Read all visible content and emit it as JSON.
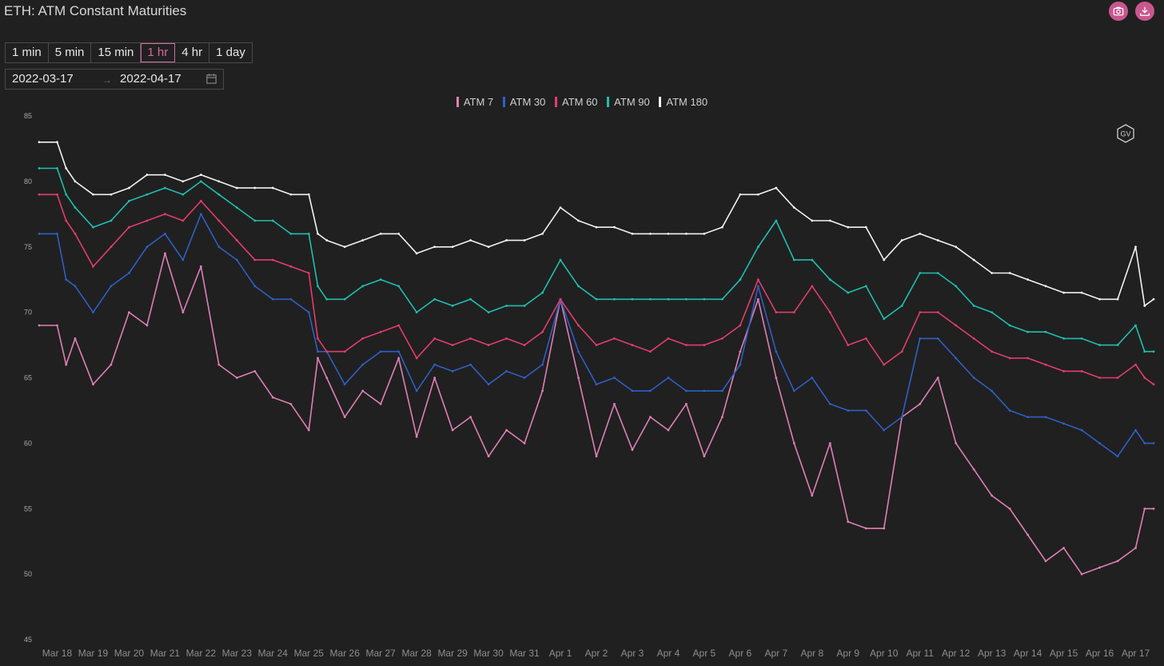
{
  "header": {
    "title": "ETH: ATM Constant Maturities",
    "camera_icon": "camera-icon",
    "download_icon": "download-icon",
    "accent": "#c9578f"
  },
  "intervals": {
    "items": [
      "1 min",
      "5 min",
      "15 min",
      "1 hr",
      "4 hr",
      "1 day"
    ],
    "active": "1 hr"
  },
  "date_range": {
    "start": "2022-03-17",
    "separator": "→",
    "end": "2022-04-17",
    "icon": "calendar-icon"
  },
  "watermark": {
    "text": "GV"
  },
  "chart_data": {
    "type": "line",
    "title": "ETH: ATM Constant Maturities",
    "ylim": [
      45,
      85
    ],
    "y_ticks": [
      45,
      50,
      55,
      60,
      65,
      70,
      75,
      80,
      85
    ],
    "grid": false,
    "legend_position": "top-center",
    "x_tick_labels": [
      "Mar 18",
      "Mar 19",
      "Mar 20",
      "Mar 21",
      "Mar 22",
      "Mar 23",
      "Mar 24",
      "Mar 25",
      "Mar 26",
      "Mar 27",
      "Mar 28",
      "Mar 29",
      "Mar 30",
      "Mar 31",
      "Apr 1",
      "Apr 2",
      "Apr 3",
      "Apr 4",
      "Apr 5",
      "Apr 6",
      "Apr 7",
      "Apr 8",
      "Apr 9",
      "Apr 10",
      "Apr 11",
      "Apr 12",
      "Apr 13",
      "Apr 14",
      "Apr 15",
      "Apr 16",
      "Apr 17"
    ],
    "x": [
      "Mar 17 12:00",
      "Mar 18 00:00",
      "Mar 18 06:00",
      "Mar 18 12:00",
      "Mar 19 00:00",
      "Mar 19 12:00",
      "Mar 20 00:00",
      "Mar 20 12:00",
      "Mar 21 00:00",
      "Mar 21 12:00",
      "Mar 22 00:00",
      "Mar 22 12:00",
      "Mar 23 00:00",
      "Mar 23 12:00",
      "Mar 24 00:00",
      "Mar 24 12:00",
      "Mar 25 00:00",
      "Mar 25 06:00",
      "Mar 25 12:00",
      "Mar 26 00:00",
      "Mar 26 12:00",
      "Mar 27 00:00",
      "Mar 27 12:00",
      "Mar 28 00:00",
      "Mar 28 12:00",
      "Mar 29 00:00",
      "Mar 29 12:00",
      "Mar 30 00:00",
      "Mar 30 12:00",
      "Mar 31 00:00",
      "Mar 31 12:00",
      "Apr 1 00:00",
      "Apr 1 12:00",
      "Apr 2 00:00",
      "Apr 2 12:00",
      "Apr 3 00:00",
      "Apr 3 12:00",
      "Apr 4 00:00",
      "Apr 4 12:00",
      "Apr 5 00:00",
      "Apr 5 12:00",
      "Apr 6 00:00",
      "Apr 6 12:00",
      "Apr 7 00:00",
      "Apr 7 12:00",
      "Apr 8 00:00",
      "Apr 8 12:00",
      "Apr 9 00:00",
      "Apr 9 12:00",
      "Apr 10 00:00",
      "Apr 10 12:00",
      "Apr 11 00:00",
      "Apr 11 12:00",
      "Apr 12 00:00",
      "Apr 12 12:00",
      "Apr 13 00:00",
      "Apr 13 12:00",
      "Apr 14 00:00",
      "Apr 14 12:00",
      "Apr 15 00:00",
      "Apr 15 12:00",
      "Apr 16 00:00",
      "Apr 16 12:00",
      "Apr 17 00:00",
      "Apr 17 06:00",
      "Apr 17 12:00"
    ],
    "series": [
      {
        "name": "ATM 7",
        "color": "#e07fb5",
        "values": [
          69,
          69,
          66,
          68,
          64.5,
          66,
          70,
          69,
          74.5,
          70,
          73.5,
          66,
          65,
          65.5,
          63.5,
          63,
          61,
          66.5,
          65,
          62,
          64,
          63,
          66.5,
          60.5,
          65,
          61,
          62,
          59,
          61,
          60,
          64,
          71,
          65,
          59,
          63,
          59.5,
          62,
          61,
          63,
          59,
          62,
          67,
          71,
          65,
          60,
          56,
          60,
          54,
          53.5,
          53.5,
          62,
          63,
          65,
          60,
          58,
          56,
          55,
          53,
          51,
          52,
          50,
          50.5,
          51,
          52,
          55,
          55
        ]
      },
      {
        "name": "ATM 30",
        "color": "#2f5fc4",
        "values": [
          76,
          76,
          72.5,
          72,
          70,
          72,
          73,
          75,
          76,
          74,
          77.5,
          75,
          74,
          72,
          71,
          71,
          70,
          67,
          67,
          64.5,
          66,
          67,
          67,
          64,
          66,
          65.5,
          66,
          64.5,
          65.5,
          65,
          66,
          71,
          67,
          64.5,
          65,
          64,
          64,
          65,
          64,
          64,
          64,
          66,
          72,
          67,
          64,
          65,
          63,
          62.5,
          62.5,
          61,
          62,
          68,
          68,
          66.5,
          65,
          64,
          62.5,
          62,
          62,
          61.5,
          61,
          60,
          59,
          61,
          60,
          60
        ]
      },
      {
        "name": "ATM 60",
        "color": "#e23d6c",
        "values": [
          79,
          79,
          77,
          76,
          73.5,
          75,
          76.5,
          77,
          77.5,
          77,
          78.5,
          77,
          75.5,
          74,
          74,
          73.5,
          73,
          68,
          67,
          67,
          68,
          68.5,
          69,
          66.5,
          68,
          67.5,
          68,
          67.5,
          68,
          67.5,
          68.5,
          71,
          69,
          67.5,
          68,
          67.5,
          67,
          68,
          67.5,
          67.5,
          68,
          69,
          72.5,
          70,
          70,
          72,
          70,
          67.5,
          68,
          66,
          67,
          70,
          70,
          69,
          68,
          67,
          66.5,
          66.5,
          66,
          65.5,
          65.5,
          65,
          65,
          66,
          65,
          64.5
        ]
      },
      {
        "name": "ATM 90",
        "color": "#1fbfae",
        "values": [
          81,
          81,
          79,
          78,
          76.5,
          77,
          78.5,
          79,
          79.5,
          79,
          80,
          79,
          78,
          77,
          77,
          76,
          76,
          72,
          71,
          71,
          72,
          72.5,
          72,
          70,
          71,
          70.5,
          71,
          70,
          70.5,
          70.5,
          71.5,
          74,
          72,
          71,
          71,
          71,
          71,
          71,
          71,
          71,
          71,
          72.5,
          75,
          77,
          74,
          74,
          72.5,
          71.5,
          72,
          69.5,
          70.5,
          73,
          73,
          72,
          70.5,
          70,
          69,
          68.5,
          68.5,
          68,
          68,
          67.5,
          67.5,
          69,
          67,
          67
        ]
      },
      {
        "name": "ATM 180",
        "color": "#f2f2f2",
        "values": [
          83,
          83,
          81,
          80,
          79,
          79,
          79.5,
          80.5,
          80.5,
          80,
          80.5,
          80,
          79.5,
          79.5,
          79.5,
          79,
          79,
          76,
          75.5,
          75,
          75.5,
          76,
          76,
          74.5,
          75,
          75,
          75.5,
          75,
          75.5,
          75.5,
          76,
          78,
          77,
          76.5,
          76.5,
          76,
          76,
          76,
          76,
          76,
          76.5,
          79,
          79,
          79.5,
          78,
          77,
          77,
          76.5,
          76.5,
          74,
          75.5,
          76,
          75.5,
          75,
          74,
          73,
          73,
          72.5,
          72,
          71.5,
          71.5,
          71,
          71,
          75,
          70.5,
          71
        ]
      }
    ]
  }
}
